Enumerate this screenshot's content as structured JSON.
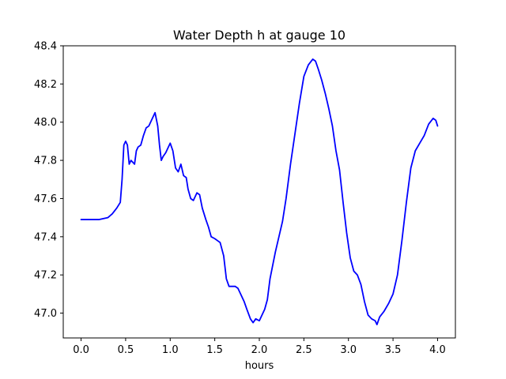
{
  "chart_data": {
    "type": "line",
    "title": "Water Depth h at gauge 10",
    "xlabel": "hours",
    "ylabel": "",
    "xlim": [
      -0.2,
      4.2
    ],
    "ylim": [
      46.87,
      48.4
    ],
    "xticks": [
      0.0,
      0.5,
      1.0,
      1.5,
      2.0,
      2.5,
      3.0,
      3.5,
      4.0
    ],
    "xtick_labels": [
      "0.0",
      "0.5",
      "1.0",
      "1.5",
      "2.0",
      "2.5",
      "3.0",
      "3.5",
      "4.0"
    ],
    "yticks": [
      47.0,
      47.2,
      47.4,
      47.6,
      47.8,
      48.0,
      48.2,
      48.4
    ],
    "ytick_labels": [
      "47.0",
      "47.2",
      "47.4",
      "47.6",
      "47.8",
      "48.0",
      "48.2",
      "48.4"
    ],
    "grid": false,
    "series": [
      {
        "color": "#0000ff",
        "x": [
          0.0,
          0.1,
          0.2,
          0.3,
          0.35,
          0.4,
          0.44,
          0.46,
          0.48,
          0.5,
          0.52,
          0.54,
          0.56,
          0.58,
          0.6,
          0.62,
          0.64,
          0.67,
          0.7,
          0.73,
          0.76,
          0.8,
          0.83,
          0.86,
          0.88,
          0.9,
          0.92,
          0.95,
          0.98,
          1.0,
          1.03,
          1.06,
          1.09,
          1.12,
          1.15,
          1.18,
          1.2,
          1.23,
          1.26,
          1.3,
          1.33,
          1.36,
          1.4,
          1.43,
          1.46,
          1.5,
          1.53,
          1.56,
          1.6,
          1.63,
          1.66,
          1.7,
          1.73,
          1.76,
          1.8,
          1.83,
          1.86,
          1.9,
          1.93,
          1.96,
          2.0,
          2.03,
          2.06,
          2.09,
          2.12,
          2.15,
          2.18,
          2.22,
          2.26,
          2.3,
          2.35,
          2.4,
          2.45,
          2.5,
          2.55,
          2.6,
          2.63,
          2.66,
          2.7,
          2.74,
          2.78,
          2.82,
          2.86,
          2.9,
          2.94,
          2.98,
          3.02,
          3.06,
          3.1,
          3.14,
          3.18,
          3.22,
          3.26,
          3.3,
          3.32,
          3.35,
          3.4,
          3.45,
          3.5,
          3.55,
          3.6,
          3.65,
          3.7,
          3.75,
          3.8,
          3.85,
          3.9,
          3.95,
          3.98,
          4.0
        ],
        "y": [
          47.49,
          47.49,
          47.49,
          47.5,
          47.52,
          47.55,
          47.58,
          47.7,
          47.88,
          47.9,
          47.88,
          47.78,
          47.8,
          47.79,
          47.78,
          47.85,
          47.87,
          47.88,
          47.93,
          47.97,
          47.98,
          48.02,
          48.05,
          47.98,
          47.88,
          47.8,
          47.82,
          47.84,
          47.87,
          47.89,
          47.85,
          47.76,
          47.74,
          47.78,
          47.72,
          47.71,
          47.65,
          47.6,
          47.59,
          47.63,
          47.62,
          47.55,
          47.49,
          47.45,
          47.4,
          47.39,
          47.38,
          47.37,
          47.3,
          47.18,
          47.14,
          47.14,
          47.14,
          47.13,
          47.09,
          47.06,
          47.02,
          46.97,
          46.95,
          46.97,
          46.96,
          46.99,
          47.02,
          47.07,
          47.18,
          47.25,
          47.32,
          47.4,
          47.48,
          47.6,
          47.78,
          47.94,
          48.1,
          48.24,
          48.3,
          48.33,
          48.32,
          48.28,
          48.22,
          48.15,
          48.07,
          47.98,
          47.85,
          47.75,
          47.58,
          47.42,
          47.29,
          47.22,
          47.2,
          47.15,
          47.06,
          46.99,
          46.97,
          46.96,
          46.94,
          46.98,
          47.01,
          47.05,
          47.1,
          47.2,
          47.38,
          47.58,
          47.76,
          47.85,
          47.89,
          47.93,
          47.99,
          48.02,
          48.01,
          47.98
        ]
      }
    ]
  }
}
